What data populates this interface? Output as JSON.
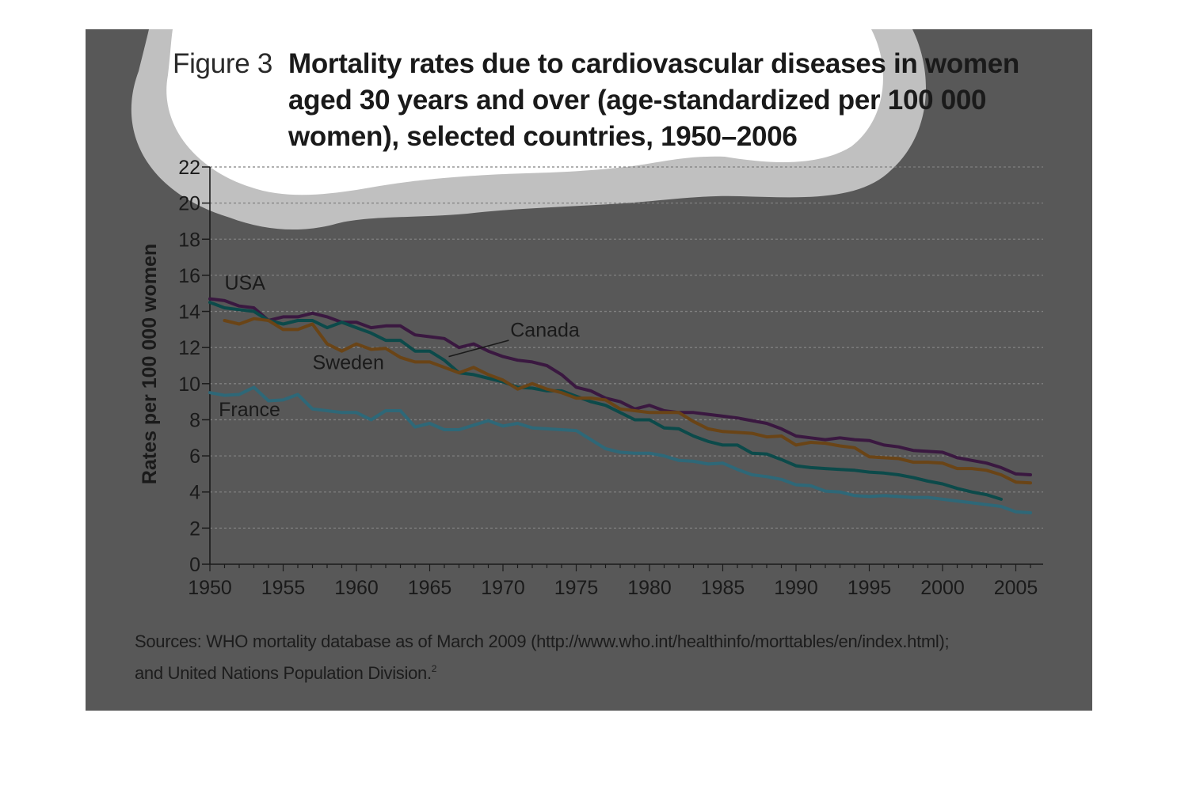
{
  "figure": {
    "label": "Figure 3",
    "title": "Mortality rates due to cardiovascular diseases in women aged 30 years and over (age-standardized per 100 000 women), selected countries, 1950–2006"
  },
  "sources": {
    "line1": "Sources: WHO mortality database as of March 2009 (http://www.who.int/healthinfo/morttables/en/index.html);",
    "line2": "and United Nations Population Division.",
    "footnote_ref": "2"
  },
  "colors": {
    "panel_bg": "#585858",
    "cloud_fill": "#ffffff",
    "cloud_edge": "#c0c0c0",
    "text": "#1a1a1a",
    "USA": "#3a1840",
    "Canada": "#0c4a4a",
    "Sweden": "#6a4416",
    "France": "#2e6878"
  },
  "chart_data": {
    "type": "line",
    "title": "Mortality rates due to cardiovascular diseases in women aged 30 years and over (age-standardized per 100 000 women), selected countries, 1950–2006",
    "xlabel": "",
    "ylabel": "Rates per 100 000 women",
    "xlim": [
      1950,
      2007
    ],
    "ylim": [
      0,
      22
    ],
    "xticks": [
      1950,
      1955,
      1960,
      1965,
      1970,
      1975,
      1980,
      1985,
      1990,
      1995,
      2000,
      2005
    ],
    "yticks": [
      0,
      2,
      4,
      6,
      8,
      10,
      12,
      14,
      16,
      18,
      20,
      22
    ],
    "grid": "horizontal dashed",
    "legend": "inline labels",
    "series": [
      {
        "name": "USA",
        "x": [
          1950,
          1951,
          1952,
          1953,
          1954,
          1955,
          1956,
          1957,
          1958,
          1959,
          1960,
          1961,
          1962,
          1963,
          1964,
          1965,
          1966,
          1967,
          1968,
          1969,
          1970,
          1971,
          1972,
          1973,
          1974,
          1975,
          1976,
          1977,
          1978,
          1979,
          1980,
          1981,
          1982,
          1983,
          1984,
          1985,
          1986,
          1987,
          1988,
          1989,
          1990,
          1991,
          1992,
          1993,
          1994,
          1995,
          1996,
          1997,
          1998,
          1999,
          2000,
          2001,
          2002,
          2003,
          2004,
          2005,
          2006
        ],
        "y": [
          14.7,
          14.6,
          14.3,
          14.2,
          13.5,
          13.7,
          13.7,
          13.9,
          13.7,
          13.4,
          13.4,
          13.1,
          13.2,
          13.2,
          12.7,
          12.6,
          12.5,
          12.0,
          12.2,
          11.8,
          11.5,
          11.3,
          11.2,
          11.0,
          10.5,
          9.8,
          9.6,
          9.2,
          9.0,
          8.6,
          8.8,
          8.5,
          8.4,
          8.4,
          8.3,
          8.2,
          8.1,
          7.95,
          7.8,
          7.5,
          7.1,
          7.0,
          6.9,
          7.0,
          6.9,
          6.85,
          6.6,
          6.5,
          6.3,
          6.25,
          6.2,
          5.9,
          5.75,
          5.6,
          5.35,
          5.0,
          4.95
        ]
      },
      {
        "name": "Canada",
        "x": [
          1950,
          1951,
          1952,
          1953,
          1954,
          1955,
          1956,
          1957,
          1958,
          1959,
          1960,
          1961,
          1962,
          1963,
          1964,
          1965,
          1966,
          1967,
          1968,
          1969,
          1970,
          1971,
          1972,
          1973,
          1974,
          1975,
          1976,
          1977,
          1978,
          1979,
          1980,
          1981,
          1982,
          1983,
          1984,
          1985,
          1986,
          1987,
          1988,
          1989,
          1990,
          1991,
          1992,
          1993,
          1994,
          1995,
          1996,
          1997,
          1998,
          1999,
          2000,
          2001,
          2002,
          2003,
          2004
        ],
        "y": [
          14.5,
          14.2,
          14.1,
          14.0,
          13.5,
          13.3,
          13.5,
          13.5,
          13.1,
          13.4,
          13.1,
          12.8,
          12.4,
          12.4,
          11.8,
          11.8,
          11.3,
          10.6,
          10.5,
          10.3,
          10.1,
          9.8,
          9.75,
          9.6,
          9.6,
          9.3,
          9.0,
          8.8,
          8.4,
          8.0,
          8.0,
          7.55,
          7.5,
          7.1,
          6.8,
          6.6,
          6.6,
          6.15,
          6.1,
          5.8,
          5.45,
          5.35,
          5.3,
          5.25,
          5.2,
          5.1,
          5.05,
          4.95,
          4.8,
          4.6,
          4.45,
          4.2,
          4.0,
          3.85,
          3.6
        ]
      },
      {
        "name": "Sweden",
        "x": [
          1951,
          1952,
          1953,
          1954,
          1955,
          1956,
          1957,
          1958,
          1959,
          1960,
          1961,
          1962,
          1963,
          1964,
          1965,
          1966,
          1967,
          1968,
          1969,
          1970,
          1971,
          1972,
          1973,
          1974,
          1975,
          1976,
          1977,
          1978,
          1979,
          1980,
          1981,
          1982,
          1983,
          1984,
          1985,
          1986,
          1987,
          1988,
          1989,
          1990,
          1991,
          1992,
          1993,
          1994,
          1995,
          1996,
          1997,
          1998,
          1999,
          2000,
          2001,
          2002,
          2003,
          2004,
          2005,
          2006
        ],
        "y": [
          13.5,
          13.3,
          13.6,
          13.5,
          13.0,
          13.0,
          13.3,
          12.2,
          11.8,
          12.2,
          11.9,
          11.95,
          11.45,
          11.2,
          11.2,
          10.9,
          10.6,
          10.9,
          10.5,
          10.2,
          9.7,
          10.0,
          9.7,
          9.5,
          9.2,
          9.2,
          9.1,
          8.6,
          8.5,
          8.4,
          8.4,
          8.4,
          7.9,
          7.5,
          7.35,
          7.3,
          7.25,
          7.05,
          7.1,
          6.6,
          6.75,
          6.7,
          6.55,
          6.45,
          5.95,
          5.9,
          5.85,
          5.65,
          5.65,
          5.6,
          5.3,
          5.3,
          5.2,
          4.95,
          4.55,
          4.5
        ]
      },
      {
        "name": "France",
        "x": [
          1950,
          1951,
          1952,
          1953,
          1954,
          1955,
          1956,
          1957,
          1958,
          1959,
          1960,
          1961,
          1962,
          1963,
          1964,
          1965,
          1966,
          1967,
          1968,
          1969,
          1970,
          1971,
          1972,
          1973,
          1974,
          1975,
          1976,
          1977,
          1978,
          1979,
          1980,
          1981,
          1982,
          1983,
          1984,
          1985,
          1986,
          1987,
          1988,
          1989,
          1990,
          1991,
          1992,
          1993,
          1994,
          1995,
          1996,
          1997,
          1998,
          1999,
          2000,
          2001,
          2002,
          2003,
          2004,
          2005,
          2006
        ],
        "y": [
          9.5,
          9.35,
          9.4,
          9.8,
          9.05,
          9.1,
          9.4,
          8.6,
          8.5,
          8.4,
          8.4,
          8.0,
          8.5,
          8.5,
          7.6,
          7.8,
          7.45,
          7.45,
          7.7,
          7.95,
          7.65,
          7.8,
          7.55,
          7.5,
          7.45,
          7.4,
          6.9,
          6.4,
          6.2,
          6.15,
          6.15,
          6.0,
          5.75,
          5.7,
          5.55,
          5.6,
          5.25,
          4.95,
          4.85,
          4.7,
          4.4,
          4.35,
          4.05,
          4.0,
          3.8,
          3.75,
          3.8,
          3.75,
          3.7,
          3.7,
          3.6,
          3.5,
          3.4,
          3.3,
          3.2,
          2.9,
          2.85
        ]
      }
    ]
  }
}
